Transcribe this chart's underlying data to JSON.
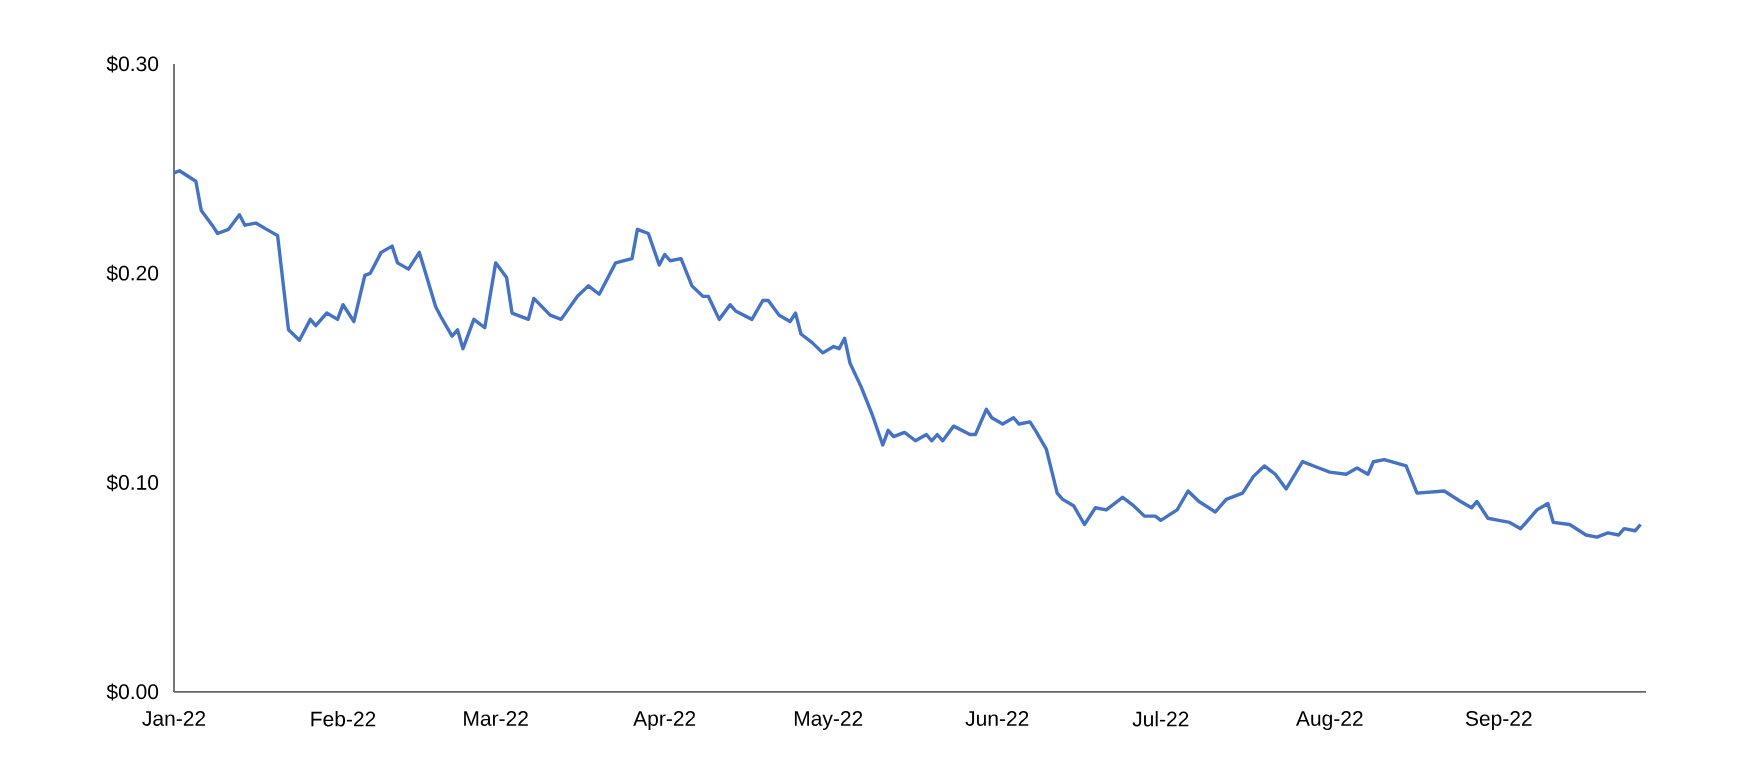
{
  "chart_data": {
    "type": "line",
    "color": "#4472c4",
    "grid": false,
    "marker": "none",
    "line_style": "solid",
    "xlim": [
      "2022-01-01",
      "2022-09-28"
    ],
    "ylim": [
      0,
      0.3
    ],
    "yticks": [
      {
        "value": 0,
        "label": "$0.00"
      },
      {
        "value": 0.1,
        "label": "$0.10"
      },
      {
        "value": 0.2,
        "label": "$0.20"
      },
      {
        "value": 0.3,
        "label": "$0.30"
      }
    ],
    "xticks": [
      {
        "value": "2022-01-01",
        "label": "Jan-22"
      },
      {
        "value": "2022-02-01",
        "label": "Feb-22"
      },
      {
        "value": "2022-03-01",
        "label": "Mar-22"
      },
      {
        "value": "2022-04-01",
        "label": "Apr-22"
      },
      {
        "value": "2022-05-01",
        "label": "May-22"
      },
      {
        "value": "2022-06-01",
        "label": "Jun-22"
      },
      {
        "value": "2022-07-01",
        "label": "Jul-22"
      },
      {
        "value": "2022-08-01",
        "label": "Aug-22"
      },
      {
        "value": "2022-09-01",
        "label": "Sep-22"
      }
    ],
    "x": [
      "2022-01-01",
      "2022-01-02",
      "2022-01-05",
      "2022-01-06",
      "2022-01-08",
      "2022-01-09",
      "2022-01-11",
      "2022-01-13",
      "2022-01-14",
      "2022-01-16",
      "2022-01-18",
      "2022-01-20",
      "2022-01-22",
      "2022-01-24",
      "2022-01-26",
      "2022-01-27",
      "2022-01-29",
      "2022-01-31",
      "2022-02-01",
      "2022-02-03",
      "2022-02-05",
      "2022-02-06",
      "2022-02-08",
      "2022-02-10",
      "2022-02-11",
      "2022-02-13",
      "2022-02-15",
      "2022-02-18",
      "2022-02-19",
      "2022-02-21",
      "2022-02-22",
      "2022-02-23",
      "2022-02-25",
      "2022-02-27",
      "2022-03-01",
      "2022-03-03",
      "2022-03-04",
      "2022-03-07",
      "2022-03-08",
      "2022-03-11",
      "2022-03-13",
      "2022-03-16",
      "2022-03-18",
      "2022-03-20",
      "2022-03-23",
      "2022-03-26",
      "2022-03-27",
      "2022-03-29",
      "2022-03-31",
      "2022-04-01",
      "2022-04-02",
      "2022-04-04",
      "2022-04-06",
      "2022-04-08",
      "2022-04-09",
      "2022-04-11",
      "2022-04-13",
      "2022-04-14",
      "2022-04-17",
      "2022-04-19",
      "2022-04-20",
      "2022-04-22",
      "2022-04-24",
      "2022-04-25",
      "2022-04-26",
      "2022-04-28",
      "2022-04-30",
      "2022-05-02",
      "2022-05-03",
      "2022-05-04",
      "2022-05-05",
      "2022-05-07",
      "2022-05-09",
      "2022-05-11",
      "2022-05-12",
      "2022-05-13",
      "2022-05-15",
      "2022-05-17",
      "2022-05-19",
      "2022-05-20",
      "2022-05-21",
      "2022-05-22",
      "2022-05-24",
      "2022-05-27",
      "2022-05-28",
      "2022-05-30",
      "2022-05-31",
      "2022-06-02",
      "2022-06-04",
      "2022-06-05",
      "2022-06-07",
      "2022-06-08",
      "2022-06-10",
      "2022-06-12",
      "2022-06-13",
      "2022-06-15",
      "2022-06-17",
      "2022-06-19",
      "2022-06-21",
      "2022-06-24",
      "2022-06-26",
      "2022-06-28",
      "2022-06-30",
      "2022-07-01",
      "2022-07-04",
      "2022-07-06",
      "2022-07-08",
      "2022-07-11",
      "2022-07-13",
      "2022-07-16",
      "2022-07-18",
      "2022-07-20",
      "2022-07-22",
      "2022-07-24",
      "2022-07-27",
      "2022-07-30",
      "2022-08-01",
      "2022-08-04",
      "2022-08-06",
      "2022-08-08",
      "2022-08-09",
      "2022-08-11",
      "2022-08-15",
      "2022-08-17",
      "2022-08-22",
      "2022-08-25",
      "2022-08-27",
      "2022-08-28",
      "2022-08-30",
      "2022-09-01",
      "2022-09-03",
      "2022-09-05",
      "2022-09-08",
      "2022-09-10",
      "2022-09-11",
      "2022-09-14",
      "2022-09-17",
      "2022-09-19",
      "2022-09-21",
      "2022-09-23",
      "2022-09-24",
      "2022-09-26",
      "2022-09-27"
    ],
    "values": [
      0.248,
      0.249,
      0.244,
      0.23,
      0.223,
      0.219,
      0.221,
      0.228,
      0.223,
      0.224,
      0.221,
      0.218,
      0.173,
      0.168,
      0.178,
      0.175,
      0.181,
      0.178,
      0.185,
      0.177,
      0.199,
      0.2,
      0.21,
      0.213,
      0.205,
      0.202,
      0.21,
      0.184,
      0.179,
      0.17,
      0.173,
      0.164,
      0.178,
      0.174,
      0.205,
      0.198,
      0.181,
      0.178,
      0.188,
      0.18,
      0.178,
      0.189,
      0.194,
      0.19,
      0.205,
      0.207,
      0.221,
      0.219,
      0.204,
      0.209,
      0.206,
      0.207,
      0.194,
      0.189,
      0.189,
      0.178,
      0.185,
      0.182,
      0.178,
      0.187,
      0.187,
      0.18,
      0.177,
      0.181,
      0.171,
      0.167,
      0.162,
      0.165,
      0.164,
      0.169,
      0.157,
      0.146,
      0.133,
      0.118,
      0.125,
      0.122,
      0.124,
      0.12,
      0.123,
      0.12,
      0.123,
      0.12,
      0.127,
      0.123,
      0.123,
      0.135,
      0.131,
      0.128,
      0.131,
      0.128,
      0.129,
      0.125,
      0.116,
      0.095,
      0.092,
      0.089,
      0.08,
      0.088,
      0.087,
      0.093,
      0.089,
      0.084,
      0.084,
      0.082,
      0.087,
      0.096,
      0.091,
      0.086,
      0.092,
      0.095,
      0.103,
      0.108,
      0.104,
      0.097,
      0.11,
      0.107,
      0.105,
      0.104,
      0.107,
      0.104,
      0.11,
      0.111,
      0.108,
      0.095,
      0.096,
      0.091,
      0.088,
      0.091,
      0.083,
      0.082,
      0.081,
      0.078,
      0.087,
      0.09,
      0.081,
      0.08,
      0.075,
      0.074,
      0.076,
      0.075,
      0.078,
      0.077,
      0.08
    ]
  }
}
